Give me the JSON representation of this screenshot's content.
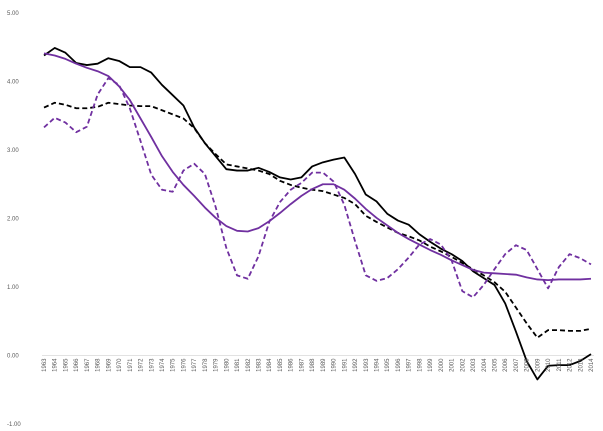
{
  "chart_data": {
    "type": "line",
    "title": "",
    "xlabel": "",
    "ylabel": "",
    "ylim": [
      -1.0,
      5.0
    ],
    "yticks": [
      "-1.00",
      "0.00",
      "1.00",
      "2.00",
      "3.00",
      "4.00",
      "5.00"
    ],
    "grid": false,
    "legend": "none",
    "x": [
      "1963",
      "1964",
      "1965",
      "1966",
      "1967",
      "1968",
      "1969",
      "1970",
      "1971",
      "1972",
      "1973",
      "1974",
      "1975",
      "1976",
      "1977",
      "1978",
      "1979",
      "1980",
      "1981",
      "1982",
      "1983",
      "1984",
      "1985",
      "1986",
      "1987",
      "1988",
      "1989",
      "1990",
      "1991",
      "1992",
      "1993",
      "1994",
      "1995",
      "1996",
      "1997",
      "1998",
      "1999",
      "2000",
      "2001",
      "2002",
      "2003",
      "2004",
      "2005",
      "2006",
      "2007",
      "2008",
      "2009",
      "2010",
      "2011",
      "2012",
      "2013",
      "2014"
    ],
    "series": [
      {
        "color": "#000000",
        "dash": "solid",
        "values": [
          4.38,
          4.49,
          4.42,
          4.27,
          4.24,
          4.26,
          4.34,
          4.3,
          4.21,
          4.21,
          4.13,
          3.95,
          3.8,
          3.65,
          3.33,
          3.1,
          2.91,
          2.72,
          2.7,
          2.7,
          2.74,
          2.68,
          2.6,
          2.57,
          2.6,
          2.76,
          2.82,
          2.86,
          2.89,
          2.65,
          2.35,
          2.25,
          2.07,
          1.97,
          1.91,
          1.77,
          1.66,
          1.56,
          1.48,
          1.38,
          1.23,
          1.13,
          1.03,
          0.76,
          0.35,
          -0.08,
          -0.35,
          -0.15,
          -0.14,
          -0.14,
          -0.08,
          0.02
        ]
      },
      {
        "color": "#000000",
        "dash": "dashed",
        "values": [
          3.62,
          3.69,
          3.66,
          3.61,
          3.61,
          3.63,
          3.69,
          3.67,
          3.65,
          3.64,
          3.64,
          3.58,
          3.52,
          3.46,
          3.32,
          3.1,
          2.94,
          2.79,
          2.76,
          2.73,
          2.7,
          2.65,
          2.55,
          2.49,
          2.45,
          2.42,
          2.4,
          2.35,
          2.3,
          2.21,
          2.04,
          1.95,
          1.87,
          1.79,
          1.74,
          1.68,
          1.59,
          1.52,
          1.44,
          1.35,
          1.26,
          1.17,
          1.07,
          0.93,
          0.7,
          0.47,
          0.26,
          0.37,
          0.37,
          0.36,
          0.36,
          0.39
        ]
      },
      {
        "color": "#7030a0",
        "dash": "solid",
        "values": [
          4.41,
          4.38,
          4.33,
          4.26,
          4.2,
          4.15,
          4.08,
          3.93,
          3.73,
          3.46,
          3.19,
          2.91,
          2.68,
          2.49,
          2.33,
          2.16,
          2.01,
          1.89,
          1.82,
          1.81,
          1.86,
          1.96,
          2.08,
          2.21,
          2.33,
          2.43,
          2.5,
          2.5,
          2.42,
          2.29,
          2.14,
          2.01,
          1.9,
          1.79,
          1.7,
          1.62,
          1.54,
          1.47,
          1.39,
          1.32,
          1.25,
          1.21,
          1.2,
          1.19,
          1.18,
          1.14,
          1.11,
          1.1,
          1.11,
          1.11,
          1.11,
          1.12
        ]
      },
      {
        "color": "#7030a0",
        "dash": "dashed",
        "values": [
          3.33,
          3.47,
          3.4,
          3.26,
          3.34,
          3.81,
          4.05,
          3.95,
          3.61,
          3.13,
          2.64,
          2.42,
          2.39,
          2.7,
          2.8,
          2.65,
          2.17,
          1.57,
          1.17,
          1.12,
          1.45,
          1.95,
          2.24,
          2.42,
          2.52,
          2.67,
          2.67,
          2.54,
          2.2,
          1.67,
          1.17,
          1.09,
          1.13,
          1.26,
          1.43,
          1.62,
          1.7,
          1.62,
          1.39,
          0.94,
          0.85,
          1.03,
          1.26,
          1.48,
          1.61,
          1.54,
          1.26,
          0.98,
          1.29,
          1.48,
          1.42,
          1.33
        ]
      }
    ]
  }
}
